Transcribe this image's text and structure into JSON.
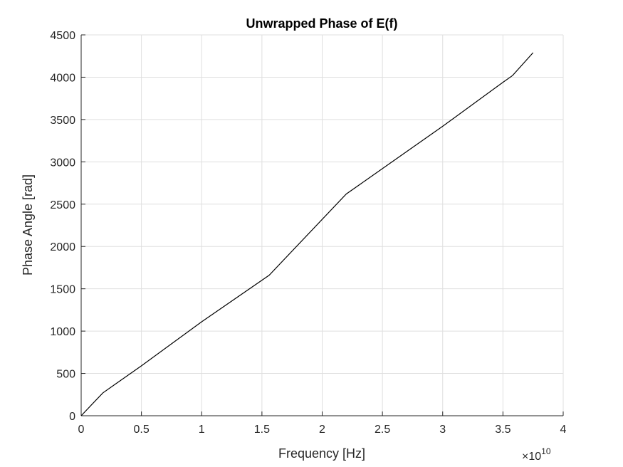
{
  "chart_data": {
    "type": "line",
    "title": "Unwrapped Phase of E(f)",
    "xlabel": "Frequency [Hz]",
    "ylabel": "Phase Angle [rad]",
    "xlim": [
      0,
      40000000000.0
    ],
    "ylim": [
      0,
      4500
    ],
    "x_exponent_label": "×10",
    "x_exponent_power": "10",
    "xticks": [
      0,
      5000000000.0,
      10000000000.0,
      15000000000.0,
      20000000000.0,
      25000000000.0,
      30000000000.0,
      35000000000.0,
      40000000000.0
    ],
    "xtick_labels": [
      "0",
      "0.5",
      "1",
      "1.5",
      "2",
      "2.5",
      "3",
      "3.5",
      "4"
    ],
    "yticks": [
      0,
      500,
      1000,
      1500,
      2000,
      2500,
      3000,
      3500,
      4000,
      4500
    ],
    "ytick_labels": [
      "0",
      "500",
      "1000",
      "1500",
      "2000",
      "2500",
      "3000",
      "3500",
      "4000",
      "4500"
    ],
    "grid": true,
    "series": [
      {
        "x": [
          0,
          1800000000.0,
          2800000000.0,
          5000000000.0,
          10000000000.0,
          15600000000.0,
          22000000000.0,
          30000000000.0,
          35000000000.0,
          35800000000.0,
          37500000000.0
        ],
        "y": [
          0,
          270,
          370,
          590,
          1110,
          1660,
          2620,
          3420,
          3940,
          4020,
          4290
        ]
      }
    ]
  }
}
